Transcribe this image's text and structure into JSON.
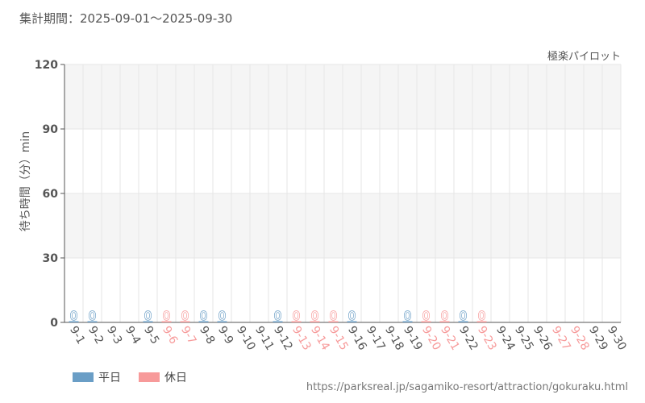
{
  "header": {
    "period": "集計期間：2025-09-01～2025-09-30",
    "attraction": "極楽パイロット"
  },
  "colors": {
    "weekday": "#6a9ec6",
    "holiday": "#f79a9a",
    "axis": "#555555",
    "grid": "#e6e6e6",
    "band": "#f5f5f5"
  },
  "legend": {
    "weekday": "平日",
    "holiday": "休日"
  },
  "source": "https://parksreal.jp/sagamiko-resort/attraction/gokuraku.html",
  "chart_data": {
    "type": "bar",
    "title": "",
    "ylabel": "待ち時間（分）min",
    "ylim": [
      0,
      120
    ],
    "yticks": [
      0,
      30,
      60,
      90,
      120
    ],
    "grid": true,
    "legend_position": "bottom-left",
    "categories": [
      "9-1",
      "9-2",
      "9-3",
      "9-4",
      "9-5",
      "9-6",
      "9-7",
      "9-8",
      "9-9",
      "9-10",
      "9-11",
      "9-12",
      "9-13",
      "9-14",
      "9-15",
      "9-16",
      "9-17",
      "9-18",
      "9-19",
      "9-20",
      "9-21",
      "9-22",
      "9-23",
      "9-24",
      "9-25",
      "9-26",
      "9-27",
      "9-28",
      "9-29",
      "9-30"
    ],
    "day_type": [
      "weekday",
      "weekday",
      "weekday",
      "weekday",
      "weekday",
      "holiday",
      "holiday",
      "weekday",
      "weekday",
      "weekday",
      "weekday",
      "weekday",
      "holiday",
      "holiday",
      "holiday",
      "weekday",
      "weekday",
      "weekday",
      "weekday",
      "holiday",
      "holiday",
      "weekday",
      "holiday",
      "weekday",
      "weekday",
      "weekday",
      "holiday",
      "holiday",
      "weekday",
      "weekday"
    ],
    "values": [
      0,
      0,
      null,
      null,
      0,
      0,
      0,
      0,
      0,
      null,
      null,
      0,
      0,
      0,
      0,
      0,
      null,
      null,
      0,
      0,
      0,
      0,
      0,
      null,
      null,
      null,
      null,
      null,
      null,
      null
    ],
    "data_labels": [
      "0",
      "0",
      "",
      "",
      "0",
      "0",
      "0",
      "0",
      "0",
      "",
      "",
      "0",
      "0",
      "0",
      "0",
      "0",
      "",
      "",
      "0",
      "0",
      "0",
      "0",
      "0",
      "",
      "",
      "",
      "",
      "",
      "",
      ""
    ]
  }
}
